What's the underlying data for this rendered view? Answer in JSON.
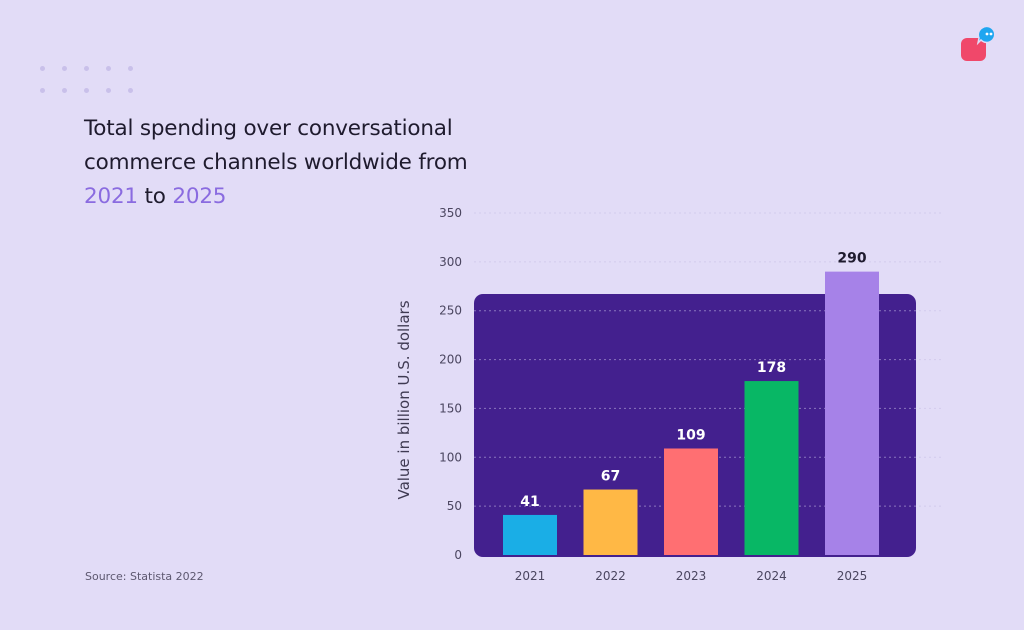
{
  "title": {
    "part1": "Total spending over conversational commerce channels worldwide from ",
    "year_start": "2021",
    "part2": " to ",
    "year_end": "2025"
  },
  "source": "Source: Statista 2022",
  "logo": {
    "icon": "chat-bubble-icon",
    "colors": [
      "#f0486a",
      "#1fa6f0"
    ]
  },
  "colors": {
    "background": "#e2dcf7",
    "panel": "#43208e",
    "accent": "#8a6be0"
  },
  "chart_data": {
    "type": "bar",
    "categories": [
      "2021",
      "2022",
      "2023",
      "2024",
      "2025"
    ],
    "values": [
      41,
      67,
      109,
      178,
      290
    ],
    "value_labels": [
      "41",
      "67",
      "109",
      "178",
      "290"
    ],
    "bar_colors": [
      "#1aaee6",
      "#ffb845",
      "#ff6f72",
      "#08b765",
      "#a682e8"
    ],
    "title": "Total spending over conversational commerce channels worldwide from 2021 to 2025",
    "xlabel": "",
    "ylabel": "Value in billion U.S. dollars",
    "ylim": [
      0,
      350
    ],
    "yticks": [
      0,
      50,
      100,
      150,
      200,
      250,
      300,
      350
    ],
    "ytick_labels": [
      "0",
      "50",
      "100",
      "150",
      "200",
      "250",
      "300",
      "350"
    ],
    "grid": true
  }
}
